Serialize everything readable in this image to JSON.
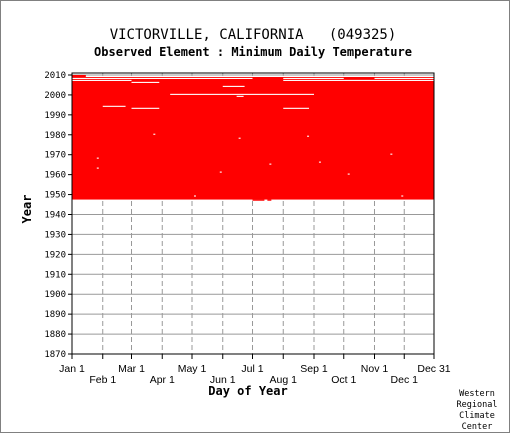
{
  "chart_data": {
    "type": "heatmap",
    "title": "VICTORVILLE, CALIFORNIA   (049325)",
    "subtitle": "Observed Element : Minimum Daily Temperature",
    "xlabel": "Day of Year",
    "ylabel": "Year",
    "x_range_days": [
      1,
      366
    ],
    "ylim": [
      1870,
      2011
    ],
    "grid": true,
    "x_ticks_row1": [
      {
        "label": "Jan 1",
        "day": 1
      },
      {
        "label": "Mar 1",
        "day": 61
      },
      {
        "label": "May 1",
        "day": 122
      },
      {
        "label": "Jul 1",
        "day": 183
      },
      {
        "label": "Sep 1",
        "day": 245
      },
      {
        "label": "Nov 1",
        "day": 306
      },
      {
        "label": "Dec 31",
        "day": 366
      }
    ],
    "x_ticks_row2": [
      {
        "label": "Feb 1",
        "day": 32
      },
      {
        "label": "Apr 1",
        "day": 92
      },
      {
        "label": "Jun 1",
        "day": 153
      },
      {
        "label": "Aug 1",
        "day": 214
      },
      {
        "label": "Oct 1",
        "day": 275
      },
      {
        "label": "Dec 1",
        "day": 336
      }
    ],
    "y_ticks": [
      1870,
      1880,
      1890,
      1900,
      1910,
      1920,
      1930,
      1940,
      1950,
      1960,
      1970,
      1980,
      1990,
      2000,
      2010
    ],
    "colors": {
      "data": "#ff0000",
      "gridline": "#999999",
      "background": "#ffffff",
      "axis": "#000000"
    },
    "data_coverage": {
      "main_block": {
        "year_start": 1947.5,
        "year_end": 2009,
        "day_start": 1,
        "day_end": 366
      },
      "extensions": [
        {
          "year_start": 2009,
          "year_end": 2010,
          "day_start": 1,
          "day_end": 15
        },
        {
          "year_start": 2008,
          "year_end": 2009,
          "day_start": 183,
          "day_end": 214
        },
        {
          "year_start": 2008,
          "year_end": 2009,
          "day_start": 275,
          "day_end": 306
        }
      ],
      "bottom_gaps": [
        {
          "year": 1947.5,
          "day_start": 183,
          "day_end": 195
        },
        {
          "year": 1947.5,
          "day_start": 198,
          "day_end": 202
        }
      ],
      "missing_segments": [
        {
          "year": 2009,
          "day_start": 15,
          "day_end": 366
        },
        {
          "year": 2008,
          "day_start": 1,
          "day_end": 183
        },
        {
          "year": 2008,
          "day_start": 214,
          "day_end": 275
        },
        {
          "year": 2008,
          "day_start": 306,
          "day_end": 366
        },
        {
          "year": 2007,
          "day_start": 1,
          "day_end": 61
        },
        {
          "year": 2007,
          "day_start": 214,
          "day_end": 366
        },
        {
          "year": 2006,
          "day_start": 61,
          "day_end": 89
        },
        {
          "year": 2004,
          "day_start": 153,
          "day_end": 175
        },
        {
          "year": 2000,
          "day_start": 100,
          "day_end": 245
        },
        {
          "year": 1999,
          "day_start": 167,
          "day_end": 174
        },
        {
          "year": 1994,
          "day_start": 32,
          "day_end": 55
        },
        {
          "year": 1993,
          "day_start": 61,
          "day_end": 89
        },
        {
          "year": 1993,
          "day_start": 214,
          "day_end": 240
        },
        {
          "year": 1980,
          "day_start": 83,
          "day_end": 85
        },
        {
          "year": 1979,
          "day_start": 238,
          "day_end": 240
        },
        {
          "year": 1978,
          "day_start": 169,
          "day_end": 171
        },
        {
          "year": 1970,
          "day_start": 322,
          "day_end": 324
        },
        {
          "year": 1968,
          "day_start": 26,
          "day_end": 28
        },
        {
          "year": 1966,
          "day_start": 250,
          "day_end": 252
        },
        {
          "year": 1965,
          "day_start": 200,
          "day_end": 202
        },
        {
          "year": 1963,
          "day_start": 26,
          "day_end": 28
        },
        {
          "year": 1961,
          "day_start": 150,
          "day_end": 152
        },
        {
          "year": 1960,
          "day_start": 279,
          "day_end": 281
        },
        {
          "year": 1949,
          "day_start": 124,
          "day_end": 126
        },
        {
          "year": 1949,
          "day_start": 333,
          "day_end": 335
        }
      ]
    }
  },
  "credit": {
    "line1": "Western",
    "line2": "Regional",
    "line3": "Climate",
    "line4": "Center"
  }
}
